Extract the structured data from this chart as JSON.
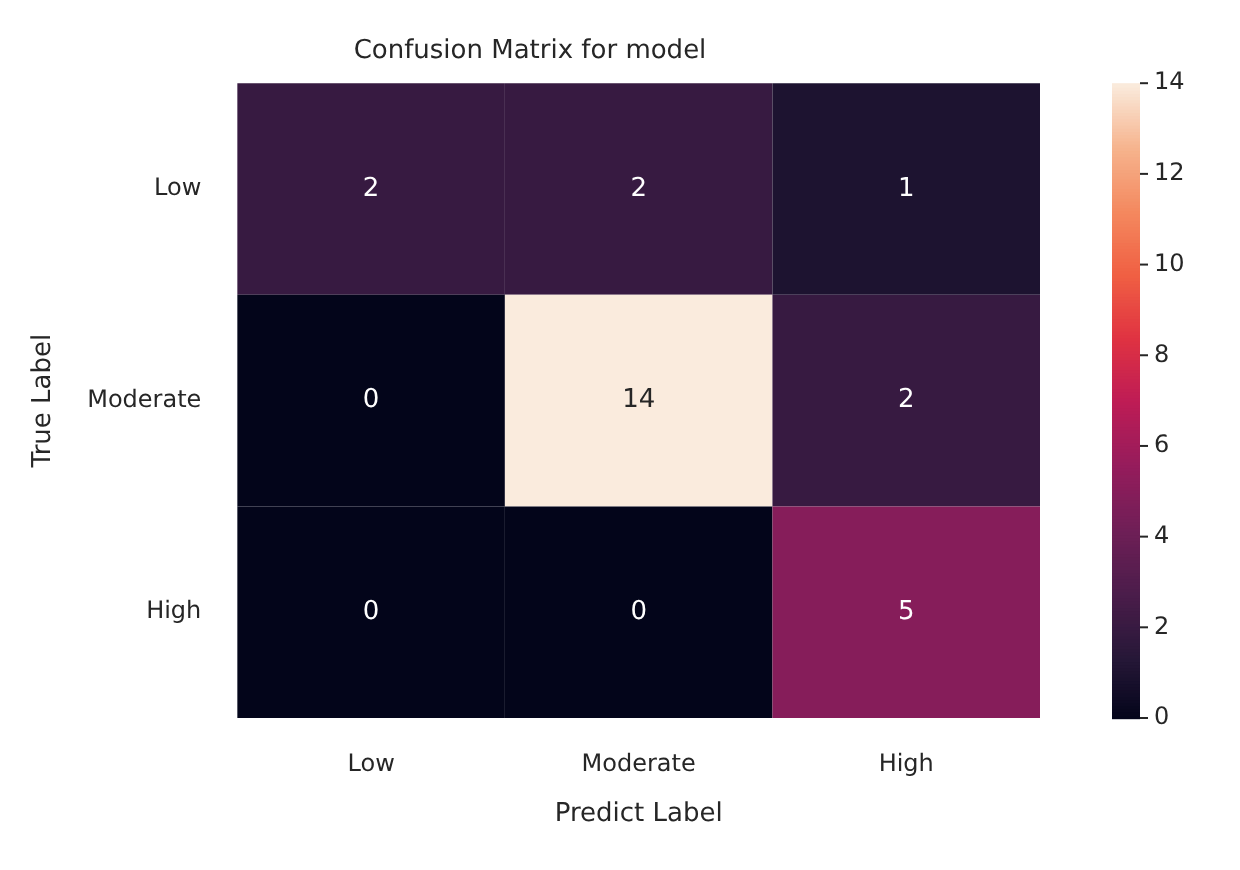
{
  "chart_data": {
    "type": "heatmap",
    "title": "Confusion Matrix for model",
    "xlabel": "Predict Label",
    "ylabel": "True Label",
    "categories": [
      "Low",
      "Moderate",
      "High"
    ],
    "y_categories": [
      "Low",
      "Moderate",
      "High"
    ],
    "cells": [
      [
        2,
        2,
        1
      ],
      [
        0,
        14,
        2
      ],
      [
        0,
        0,
        5
      ]
    ],
    "clim": [
      0,
      14
    ],
    "cticks": [
      0,
      2,
      4,
      6,
      8,
      10,
      12,
      14
    ],
    "data_labels": true
  }
}
